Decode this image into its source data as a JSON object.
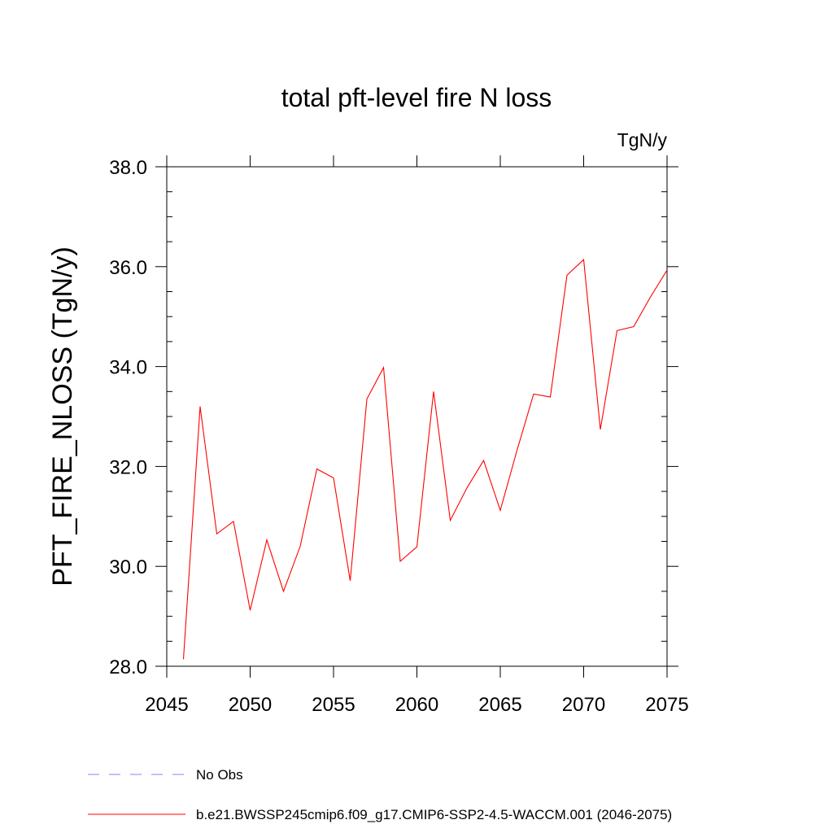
{
  "chart_data": {
    "type": "line",
    "title": "total pft-level fire N loss",
    "units_label": "TgN/y",
    "ylabel": "PFT_FIRE_NLOSS  (TgN/y)",
    "xlabel": "",
    "xlim": [
      2045,
      2075
    ],
    "ylim": [
      28.0,
      38.0
    ],
    "x_ticks": [
      2045,
      2050,
      2055,
      2060,
      2065,
      2070,
      2075
    ],
    "x_tick_labels": [
      "2045",
      "2050",
      "2055",
      "2060",
      "2065",
      "2070",
      "2075"
    ],
    "y_ticks": [
      28.0,
      30.0,
      32.0,
      34.0,
      36.0,
      38.0
    ],
    "y_tick_labels": [
      "28.0",
      "30.0",
      "32.0",
      "34.0",
      "36.0",
      "38.0"
    ],
    "grid": false,
    "legend_position": "bottom",
    "series": [
      {
        "name": "b.e21.BWSSP245cmip6.f09_g17.CMIP6-SSP2-4.5-WACCM.001 (2046-2075)",
        "color": "#ff0000",
        "style": "solid",
        "x": [
          2046,
          2047,
          2048,
          2049,
          2050,
          2051,
          2052,
          2053,
          2054,
          2055,
          2056,
          2057,
          2058,
          2059,
          2060,
          2061,
          2062,
          2063,
          2064,
          2065,
          2066,
          2067,
          2068,
          2069,
          2070,
          2071,
          2072,
          2073,
          2074,
          2075
        ],
        "values": [
          28.14,
          33.2,
          30.65,
          30.9,
          29.12,
          30.53,
          29.5,
          30.4,
          31.95,
          31.77,
          29.71,
          33.35,
          33.98,
          30.1,
          30.39,
          33.5,
          30.92,
          31.57,
          32.12,
          31.12,
          32.32,
          33.45,
          33.39,
          35.83,
          36.14,
          32.74,
          34.72,
          34.8,
          35.39,
          35.93
        ]
      },
      {
        "name": "No Obs",
        "color": "#8080ff",
        "style": "dashed",
        "x": [],
        "values": []
      }
    ]
  }
}
